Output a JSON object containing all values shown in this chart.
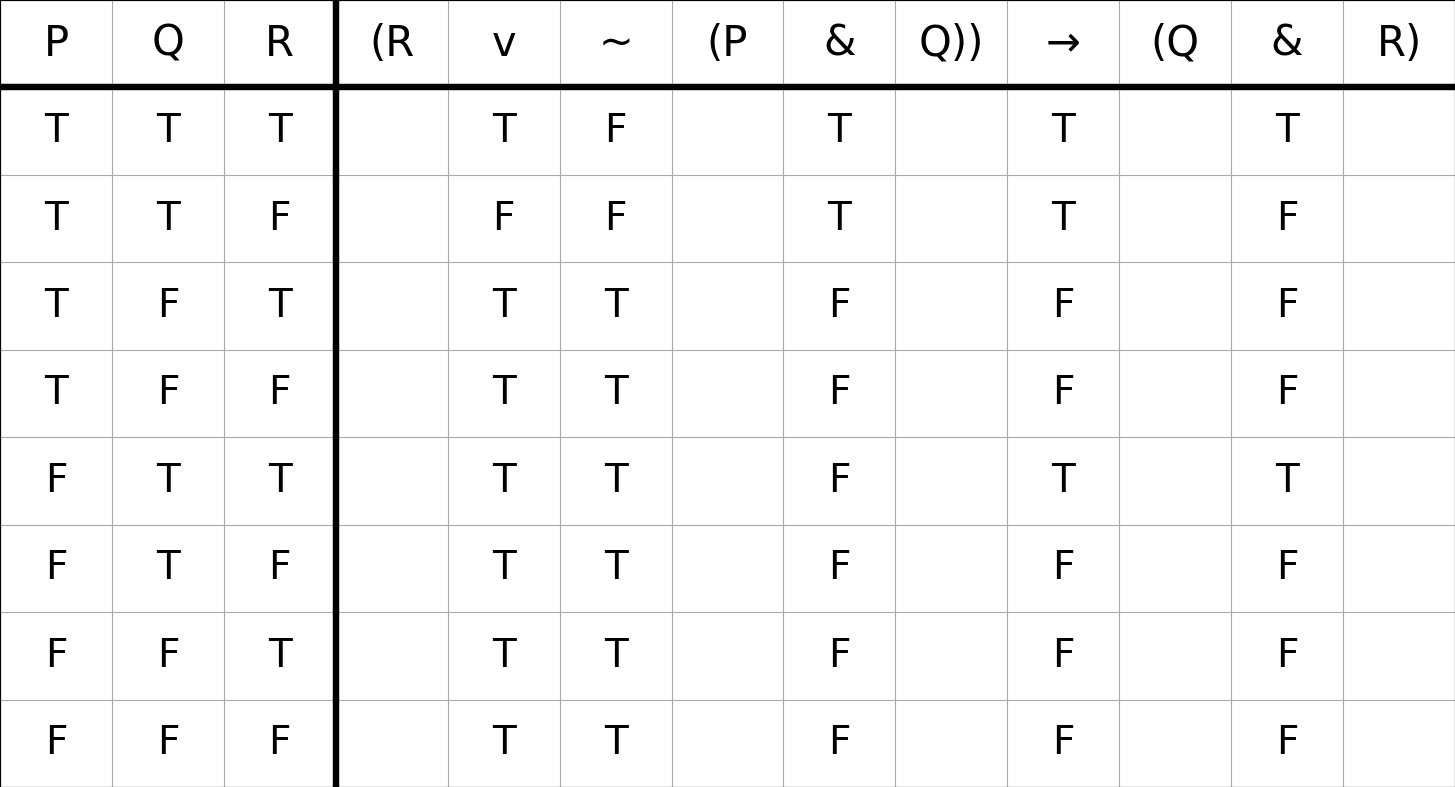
{
  "headers": [
    "P",
    "Q",
    "R",
    "(R",
    "v",
    "~",
    "(P",
    "&",
    "Q))",
    "→",
    "(Q",
    "&",
    "R)"
  ],
  "rows": [
    [
      "T",
      "T",
      "T",
      "",
      "T",
      "F",
      "",
      "T",
      "",
      "T",
      "",
      "T",
      ""
    ],
    [
      "T",
      "T",
      "F",
      "",
      "F",
      "F",
      "",
      "T",
      "",
      "T",
      "",
      "F",
      ""
    ],
    [
      "T",
      "F",
      "T",
      "",
      "T",
      "T",
      "",
      "F",
      "",
      "F",
      "",
      "F",
      ""
    ],
    [
      "T",
      "F",
      "F",
      "",
      "T",
      "T",
      "",
      "F",
      "",
      "F",
      "",
      "F",
      ""
    ],
    [
      "F",
      "T",
      "T",
      "",
      "T",
      "T",
      "",
      "F",
      "",
      "T",
      "",
      "T",
      ""
    ],
    [
      "F",
      "T",
      "F",
      "",
      "T",
      "T",
      "",
      "F",
      "",
      "F",
      "",
      "F",
      ""
    ],
    [
      "F",
      "F",
      "T",
      "",
      "T",
      "T",
      "",
      "F",
      "",
      "F",
      "",
      "F",
      ""
    ],
    [
      "F",
      "F",
      "F",
      "",
      "T",
      "T",
      "",
      "F",
      "",
      "F",
      "",
      "F",
      ""
    ]
  ],
  "num_cols": 13,
  "num_rows": 9,
  "thick_col_after": 3,
  "bg_color": "#ffffff",
  "line_color": "#000000",
  "grid_color": "#aaaaaa",
  "text_color": "#000000",
  "header_fontsize": 30,
  "cell_fontsize": 28,
  "fig_width": 14.55,
  "fig_height": 7.87,
  "thin_lw": 0.8,
  "thick_lw": 4.5
}
